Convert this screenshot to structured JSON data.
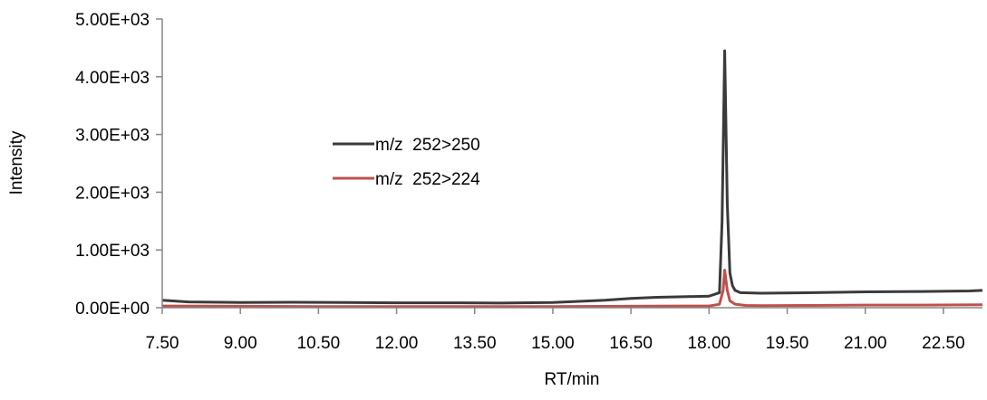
{
  "chart_data": {
    "type": "line",
    "title": "",
    "xlabel": "RT/min",
    "ylabel": "Intensity",
    "xlim": [
      7.5,
      23.25
    ],
    "ylim": [
      0,
      5000
    ],
    "x_ticks": [
      "7.50",
      "9.00",
      "10.50",
      "12.00",
      "13.50",
      "15.00",
      "16.50",
      "18.00",
      "19.50",
      "21.00",
      "22.50"
    ],
    "y_ticks": [
      "0.00E+00",
      "1.00E+03",
      "2.00E+03",
      "3.00E+03",
      "4.00E+03",
      "5.00E+03"
    ],
    "grid": false,
    "legend_position": "center-left",
    "series": [
      {
        "name": "m/z  252>250",
        "color": "#3a3a3a",
        "x": [
          7.5,
          8.0,
          9.0,
          10.0,
          11.0,
          12.0,
          13.0,
          14.0,
          15.0,
          15.5,
          16.0,
          16.5,
          17.0,
          17.5,
          18.0,
          18.2,
          18.25,
          18.3,
          18.35,
          18.4,
          18.45,
          18.5,
          18.6,
          19.0,
          20.0,
          21.0,
          22.0,
          23.0,
          23.25
        ],
        "y": [
          130,
          100,
          90,
          95,
          90,
          85,
          85,
          80,
          90,
          110,
          130,
          160,
          180,
          190,
          200,
          260,
          1500,
          4450,
          1800,
          600,
          380,
          300,
          260,
          250,
          260,
          275,
          280,
          290,
          300
        ]
      },
      {
        "name": "m/z  252>224",
        "color": "#c0504d",
        "x": [
          7.5,
          9.0,
          10.5,
          12.0,
          13.5,
          15.0,
          16.5,
          17.5,
          18.0,
          18.2,
          18.27,
          18.3,
          18.35,
          18.4,
          18.5,
          18.7,
          19.0,
          20.0,
          21.0,
          22.0,
          23.25
        ],
        "y": [
          30,
          25,
          20,
          20,
          20,
          20,
          25,
          30,
          30,
          60,
          300,
          650,
          300,
          120,
          60,
          40,
          35,
          40,
          45,
          45,
          50
        ]
      }
    ]
  }
}
